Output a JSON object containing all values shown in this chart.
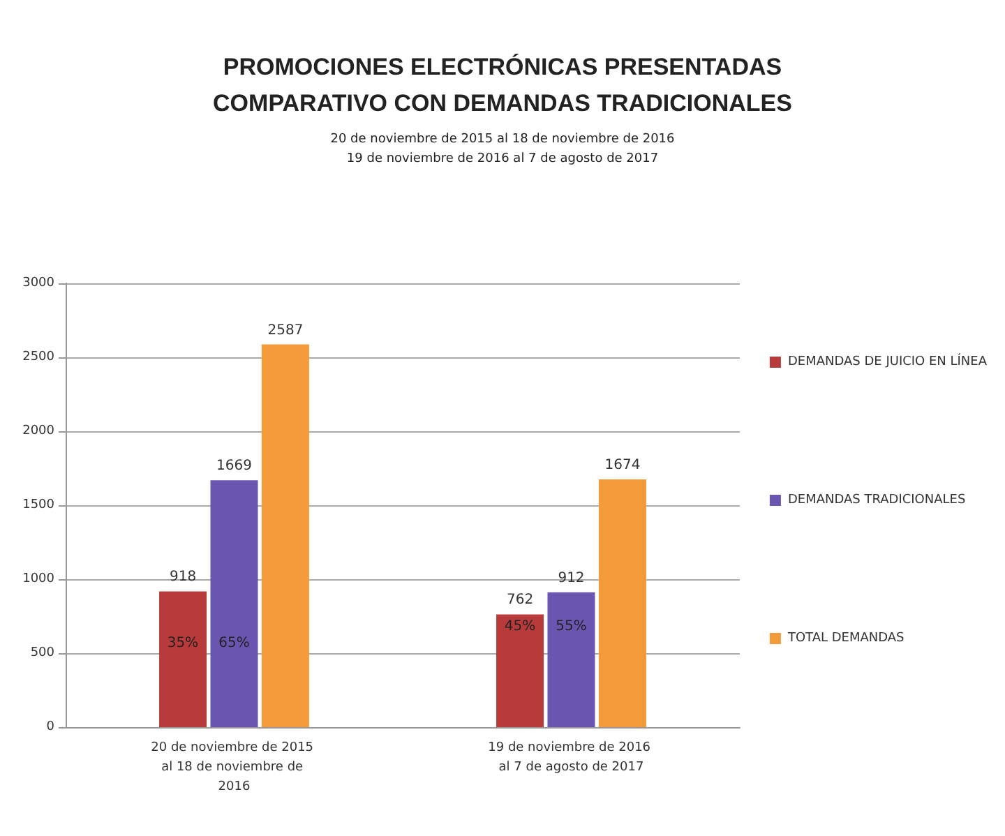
{
  "chart_data": {
    "type": "bar",
    "title": "PROMOCIONES ELECTRÓNICAS PRESENTADAS\nCOMPARATIVO CON DEMANDAS TRADICIONALES",
    "subtitle": "20 de noviembre de 2015 al 18 de noviembre de 2016\n19 de noviembre de 2016 al 7 de agosto de 2017",
    "categories": [
      "20 de noviembre de 2015 al 18 de noviembre de 2016",
      "19 de noviembre de 2016 al 7 de agosto de 2017"
    ],
    "series": [
      {
        "name": "DEMANDAS DE JUICIO EN LÍNEA",
        "color": "#b83a3a",
        "values": [
          918,
          762
        ]
      },
      {
        "name": "DEMANDAS TRADICIONALES",
        "color": "#6a55b0",
        "values": [
          1669,
          912
        ]
      },
      {
        "name": "TOTAL DEMANDAS",
        "color": "#f39a3a",
        "values": [
          2587,
          1674
        ]
      }
    ],
    "annotations": [
      "35%",
      "65%",
      "45%",
      "55%"
    ],
    "ylim": [
      0,
      3000
    ],
    "yticks": [
      0,
      500,
      1000,
      1500,
      2000,
      2500,
      3000
    ],
    "grid": true,
    "legend": "right",
    "data_labels": true
  }
}
